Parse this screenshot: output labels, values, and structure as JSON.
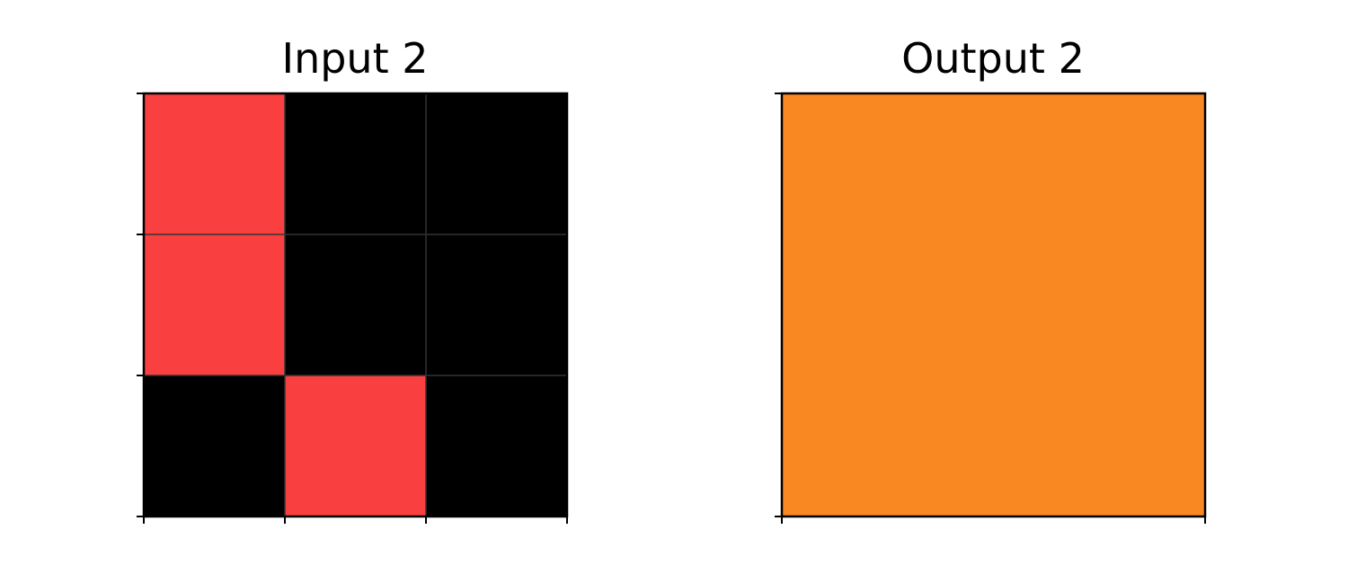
{
  "panels": [
    {
      "title": "Input 2",
      "rows": 3,
      "cols": 3,
      "grid": [
        [
          "#f93f3f",
          "#000000",
          "#000000"
        ],
        [
          "#f93f3f",
          "#000000",
          "#000000"
        ],
        [
          "#000000",
          "#f93f3f",
          "#000000"
        ]
      ]
    },
    {
      "title": "Output 2",
      "rows": 1,
      "cols": 1,
      "grid": [
        [
          "#fa8822"
        ]
      ]
    }
  ],
  "colors": {
    "red": "#f93f3f",
    "black": "#000000",
    "orange": "#fa8822",
    "frame": "#000000",
    "cell_divider": "#333333"
  }
}
